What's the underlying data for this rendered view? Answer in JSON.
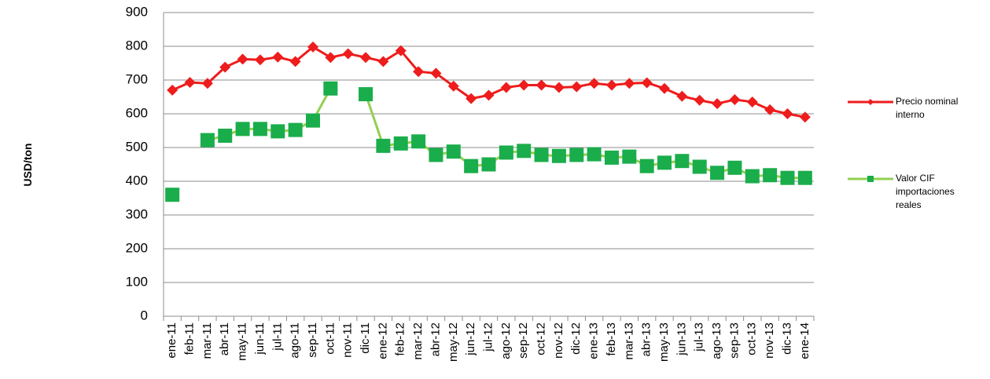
{
  "chart_data": {
    "type": "line",
    "y_label": "USD/ton",
    "categories": [
      "ene-11",
      "feb-11",
      "mar-11",
      "abr-11",
      "may-11",
      "jun-11",
      "jul-11",
      "ago-11",
      "sep-11",
      "oct-11",
      "nov-11",
      "dic-11",
      "ene-12",
      "feb-12",
      "mar-12",
      "abr-12",
      "may-12",
      "jun-12",
      "jul-12",
      "ago-12",
      "sep-12",
      "oct-12",
      "nov-12",
      "dic-12",
      "ene-13",
      "feb-13",
      "mar-13",
      "abr-13",
      "may-13",
      "jun-13",
      "jul-13",
      "ago-13",
      "sep-13",
      "oct-13",
      "nov-13",
      "dic-13",
      "ene-14"
    ],
    "series": [
      {
        "name": "Precio nominal interno",
        "color": "#ee1c1c",
        "marker": "diamond",
        "values": [
          670,
          693,
          690,
          738,
          762,
          760,
          768,
          755,
          798,
          767,
          778,
          767,
          755,
          787,
          725,
          720,
          682,
          645,
          655,
          678,
          685,
          685,
          678,
          680,
          690,
          685,
          690,
          692,
          675,
          652,
          640,
          630,
          642,
          635,
          612,
          600,
          590
        ]
      },
      {
        "name": "Valor CIF importaciones reales",
        "color": "#92d050",
        "marker_color": "#1aad4b",
        "marker": "square",
        "values": [
          360,
          null,
          522,
          535,
          555,
          555,
          548,
          552,
          580,
          675,
          null,
          658,
          505,
          512,
          518,
          478,
          488,
          445,
          450,
          485,
          490,
          478,
          475,
          478,
          480,
          470,
          473,
          445,
          455,
          460,
          443,
          425,
          440,
          415,
          418,
          410,
          410
        ]
      }
    ],
    "ylim": [
      0,
      900
    ],
    "yticks": [
      0,
      100,
      200,
      300,
      400,
      500,
      600,
      700,
      800,
      900
    ],
    "grid": true
  }
}
